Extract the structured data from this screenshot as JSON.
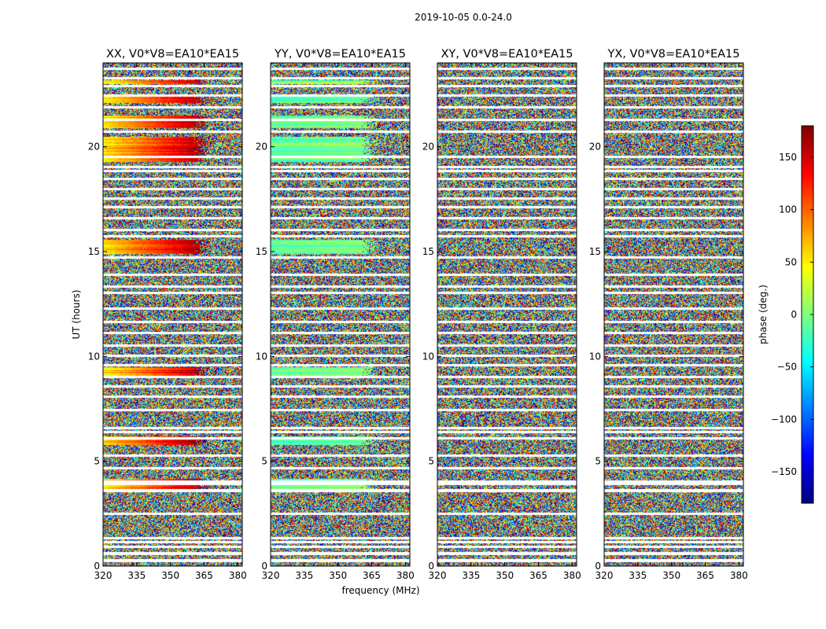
{
  "chart_data": {
    "type": "heatmap",
    "suptitle": "2019-10-05 0.0-24.0",
    "xlabel": "frequency (MHz)",
    "ylabel": "UT (hours)",
    "xlim": [
      320,
      382
    ],
    "ylim": [
      0,
      24
    ],
    "xticks": [
      320,
      335,
      350,
      365,
      380
    ],
    "yticks": [
      0,
      5,
      10,
      15,
      20
    ],
    "panels": [
      {
        "title": "XX, V0*V8=EA10*EA15",
        "base_phase": 50,
        "slope": 2.6
      },
      {
        "title": "YY, V0*V8=EA10*EA15",
        "base_phase": -10,
        "slope": 0.25
      },
      {
        "title": "XY, V0*V8=EA10*EA15",
        "base_phase": 0,
        "slope": 0
      },
      {
        "title": "YX, V0*V8=EA10*EA15",
        "base_phase": 0,
        "slope": 0
      }
    ],
    "colorbar": {
      "label": "phase (deg.)",
      "range": [
        -180,
        180
      ],
      "ticks": [
        -150,
        -100,
        -50,
        0,
        50,
        100,
        150
      ],
      "colormap": "jet"
    },
    "flagged_ut_hours": [
      0.28,
      0.62,
      0.95,
      1.15,
      1.35,
      2.5,
      3.62,
      3.95,
      4.05,
      4.7,
      5.3,
      6.1,
      6.4,
      6.6,
      7.45,
      8.1,
      8.6,
      9.05,
      9.6,
      10.05,
      10.55,
      11.15,
      11.65,
      12.3,
      13.05,
      13.35,
      13.9,
      14.75,
      15.75,
      16.05,
      16.6,
      17.15,
      17.55,
      18.0,
      18.5,
      18.85,
      19.05,
      19.55,
      20.75,
      21.3,
      21.9,
      22.45,
      22.9,
      23.3,
      23.75
    ],
    "coherent_ut_bands": [
      [
        3.6,
        4.2
      ],
      [
        5.8,
        6.2
      ],
      [
        9.1,
        9.5
      ],
      [
        14.9,
        15.6
      ],
      [
        19.3,
        20.5
      ],
      [
        20.9,
        21.5
      ],
      [
        22.1,
        22.4
      ],
      [
        23.0,
        23.2
      ]
    ]
  }
}
